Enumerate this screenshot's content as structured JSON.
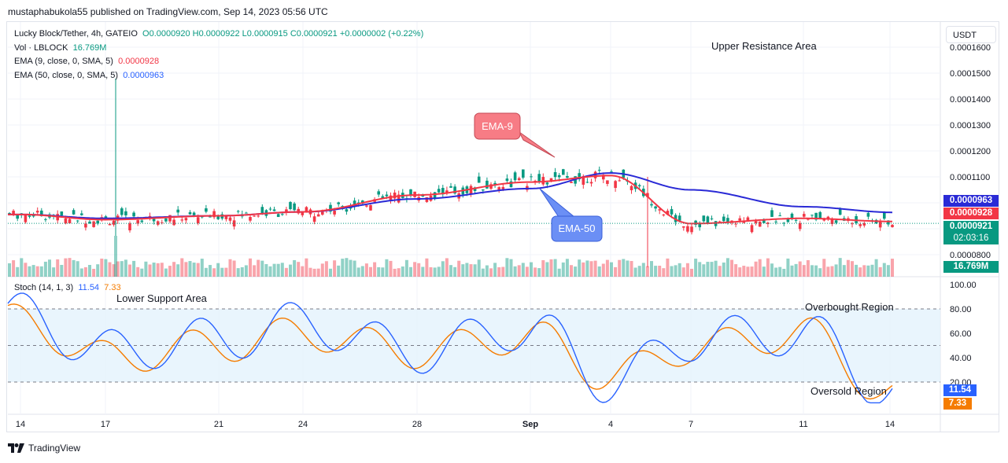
{
  "header": {
    "published": "mustaphabukola55 published on TradingView.com, Sep 14, 2023 05:56 UTC"
  },
  "legend": {
    "symbol": "Lucky Block/Tether, 4h, GATEIO",
    "ohlc": "O0.0000920 H0.0000922 L0.0000915 C0.0000921 +0.0000002 (+0.22%)",
    "vol_label": "Vol · LBLOCK",
    "vol_value": "16.769M",
    "ema9_label": "EMA (9, close, 0, SMA, 5)",
    "ema9_value": "0.0000928",
    "ema50_label": "EMA (50, close, 0, SMA, 5)",
    "ema50_value": "0.0000963",
    "stoch_label": "Stoch (14, 1, 3)",
    "stoch_k": "11.54",
    "stoch_d": "7.33"
  },
  "currency_button": "USDT",
  "price_tags": {
    "ema50": "0.0000963",
    "ema9": "0.0000928",
    "last": "0.0000921",
    "countdown": "02:03:16",
    "volume": "16.769M",
    "stoch_k": "11.54",
    "stoch_d": "7.33"
  },
  "annotations": {
    "upper_resistance": "Upper Resistance Area",
    "lower_support": "Lower Support Area",
    "ema9_callout": "EMA-9",
    "ema50_callout": "EMA-50",
    "overbought": "Overbought Region",
    "oversold": "Oversold Region"
  },
  "footer": {
    "brand": "TradingView"
  },
  "colors": {
    "up": "#089981",
    "down": "#f23645",
    "ema9": "#f23645",
    "ema50": "#2a2ad6",
    "stoch_k": "#2962ff",
    "stoch_d": "#f57c00",
    "band": "#e3f2fd"
  },
  "chart_data": [
    {
      "type": "line",
      "title": "Lucky Block/Tether, 4h, GATEIO",
      "y_axis_ticks": [
        "0.0001600",
        "0.0001500",
        "0.0001400",
        "0.0001300",
        "0.0001200",
        "0.0001100",
        "0.0001000",
        "0.0000900",
        "0.0000800"
      ],
      "ylim": [
        8e-05,
        0.000163
      ],
      "x_ticks": [
        "14",
        "17",
        "21",
        "24",
        "28",
        "Sep",
        "4",
        "7",
        "11",
        "14"
      ],
      "series": [
        {
          "name": "EMA (9, close, 0, SMA, 5)",
          "x": [
            "14",
            "17",
            "21",
            "24",
            "28",
            "Sep",
            "4",
            "7",
            "11",
            "14"
          ],
          "values": [
            9.55e-05,
            9.35e-05,
            9.5e-05,
            9.65e-05,
            0.000103,
            0.000108,
            0.0001105,
            9.2e-05,
            9.4e-05,
            9.28e-05
          ]
        },
        {
          "name": "EMA (50, close, 0, SMA, 5)",
          "x": [
            "14",
            "17",
            "21",
            "24",
            "28",
            "Sep",
            "4",
            "7",
            "11",
            "14"
          ],
          "values": [
            9.55e-05,
            9.4e-05,
            9.5e-05,
            9.65e-05,
            0.0001015,
            0.0001055,
            0.0001115,
            0.000105,
            9.85e-05,
            9.63e-05
          ]
        }
      ]
    },
    {
      "type": "line",
      "title": "Stoch (14, 1, 3)",
      "ylim": [
        0,
        100
      ],
      "y_axis_ticks": [
        "100.00",
        "80.00",
        "60.00",
        "40.00",
        "20.00"
      ],
      "x_ticks": [
        "14",
        "17",
        "21",
        "24",
        "28",
        "Sep",
        "4",
        "7",
        "11",
        "14"
      ],
      "series": [
        {
          "name": "%K",
          "x": [
            "14",
            "17",
            "21",
            "24",
            "28",
            "Sep",
            "4",
            "7",
            "11",
            "14"
          ],
          "values": [
            75,
            45,
            55,
            68,
            45,
            65,
            20,
            55,
            60,
            11.54
          ]
        },
        {
          "name": "%D",
          "x": [
            "14",
            "17",
            "21",
            "24",
            "28",
            "Sep",
            "4",
            "7",
            "11",
            "14"
          ],
          "values": [
            70,
            40,
            50,
            60,
            45,
            58,
            25,
            48,
            60,
            7.33
          ]
        }
      ]
    }
  ]
}
